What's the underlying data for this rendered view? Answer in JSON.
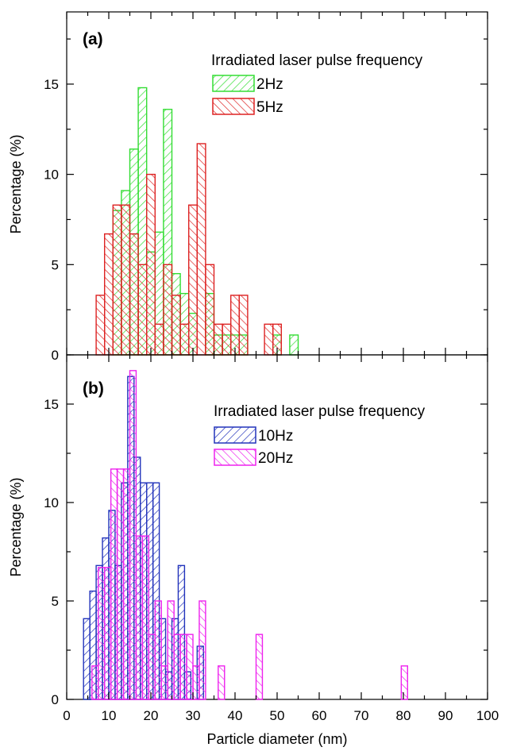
{
  "colors": {
    "frame": "#000000",
    "hz2": "#33dd33",
    "hz5": "#dd2222",
    "hz10": "#2233bb",
    "hz20": "#ee22ee"
  },
  "chart_data": [
    {
      "type": "bar",
      "panel_tag": "(a)",
      "legend_title": "Irradiated laser pulse frequency",
      "xlabel": "",
      "ylabel": "Percentage (%)",
      "xlim": [
        0,
        100
      ],
      "ylim": [
        0,
        19
      ],
      "yticks": [
        0,
        5,
        10,
        15
      ],
      "bin_width": 2,
      "series": [
        {
          "name": "2Hz",
          "color_key": "hz2",
          "hatch": "forward",
          "bins": [
            {
              "x": 12,
              "y": 8.0
            },
            {
              "x": 14,
              "y": 9.1
            },
            {
              "x": 16,
              "y": 11.4
            },
            {
              "x": 18,
              "y": 14.8
            },
            {
              "x": 20,
              "y": 5.7
            },
            {
              "x": 22,
              "y": 6.8
            },
            {
              "x": 24,
              "y": 13.6
            },
            {
              "x": 26,
              "y": 4.5
            },
            {
              "x": 28,
              "y": 3.4
            },
            {
              "x": 30,
              "y": 2.3
            },
            {
              "x": 34,
              "y": 3.4
            },
            {
              "x": 36,
              "y": 1.1
            },
            {
              "x": 38,
              "y": 1.1
            },
            {
              "x": 40,
              "y": 1.1
            },
            {
              "x": 42,
              "y": 1.1
            },
            {
              "x": 50,
              "y": 1.1
            },
            {
              "x": 54,
              "y": 1.1
            }
          ]
        },
        {
          "name": "5Hz",
          "color_key": "hz5",
          "hatch": "backward",
          "bins": [
            {
              "x": 8,
              "y": 3.3
            },
            {
              "x": 10,
              "y": 6.7
            },
            {
              "x": 12,
              "y": 8.3
            },
            {
              "x": 14,
              "y": 8.3
            },
            {
              "x": 16,
              "y": 6.7
            },
            {
              "x": 18,
              "y": 5.0
            },
            {
              "x": 20,
              "y": 10.0
            },
            {
              "x": 22,
              "y": 1.7
            },
            {
              "x": 24,
              "y": 5.0
            },
            {
              "x": 26,
              "y": 3.3
            },
            {
              "x": 28,
              "y": 1.7
            },
            {
              "x": 30,
              "y": 8.3
            },
            {
              "x": 32,
              "y": 11.7
            },
            {
              "x": 34,
              "y": 5.0
            },
            {
              "x": 36,
              "y": 1.7
            },
            {
              "x": 38,
              "y": 1.7
            },
            {
              "x": 40,
              "y": 3.3
            },
            {
              "x": 42,
              "y": 3.3
            },
            {
              "x": 48,
              "y": 1.7
            },
            {
              "x": 50,
              "y": 1.7
            }
          ]
        }
      ]
    },
    {
      "type": "bar",
      "panel_tag": "(b)",
      "legend_title": "Irradiated laser pulse frequency",
      "xlabel": "Particle diameter (nm)",
      "ylabel": "Percentage (%)",
      "xlim": [
        0,
        100
      ],
      "ylim": [
        0,
        17.5
      ],
      "xticks": [
        0,
        10,
        20,
        30,
        40,
        50,
        60,
        70,
        80,
        90,
        100
      ],
      "yticks": [
        0,
        5,
        10,
        15
      ],
      "bin_width": 1.5,
      "series": [
        {
          "name": "10Hz",
          "color_key": "hz10",
          "hatch": "forward",
          "bins": [
            {
              "x": 4.75,
              "y": 4.1
            },
            {
              "x": 6.25,
              "y": 5.5
            },
            {
              "x": 7.75,
              "y": 6.8
            },
            {
              "x": 9.25,
              "y": 8.2
            },
            {
              "x": 10.75,
              "y": 9.6
            },
            {
              "x": 12.25,
              "y": 6.8
            },
            {
              "x": 13.75,
              "y": 11.0
            },
            {
              "x": 15.25,
              "y": 16.4
            },
            {
              "x": 16.75,
              "y": 12.3
            },
            {
              "x": 18.25,
              "y": 11.0
            },
            {
              "x": 19.75,
              "y": 11.0
            },
            {
              "x": 21.25,
              "y": 11.0
            },
            {
              "x": 22.75,
              "y": 4.1
            },
            {
              "x": 24.25,
              "y": 1.4
            },
            {
              "x": 25.75,
              "y": 4.1
            },
            {
              "x": 27.25,
              "y": 6.8
            },
            {
              "x": 28.75,
              "y": 1.4
            },
            {
              "x": 31.75,
              "y": 2.7
            }
          ]
        },
        {
          "name": "20Hz",
          "color_key": "hz20",
          "hatch": "backward",
          "bins": [
            {
              "x": 6.75,
              "y": 1.7
            },
            {
              "x": 8.25,
              "y": 6.7
            },
            {
              "x": 9.75,
              "y": 6.7
            },
            {
              "x": 11.25,
              "y": 11.7
            },
            {
              "x": 12.75,
              "y": 11.7
            },
            {
              "x": 14.25,
              "y": 11.7
            },
            {
              "x": 15.75,
              "y": 16.7
            },
            {
              "x": 17.25,
              "y": 8.3
            },
            {
              "x": 18.75,
              "y": 8.3
            },
            {
              "x": 20.25,
              "y": 3.3
            },
            {
              "x": 21.75,
              "y": 5.0
            },
            {
              "x": 23.25,
              "y": 1.7
            },
            {
              "x": 24.75,
              "y": 5.0
            },
            {
              "x": 26.25,
              "y": 3.3
            },
            {
              "x": 27.75,
              "y": 3.3
            },
            {
              "x": 29.25,
              "y": 3.3
            },
            {
              "x": 30.75,
              "y": 1.7
            },
            {
              "x": 32.25,
              "y": 5.0
            },
            {
              "x": 36.75,
              "y": 1.7
            },
            {
              "x": 45.75,
              "y": 3.3
            },
            {
              "x": 80.25,
              "y": 1.7
            }
          ]
        }
      ]
    }
  ]
}
